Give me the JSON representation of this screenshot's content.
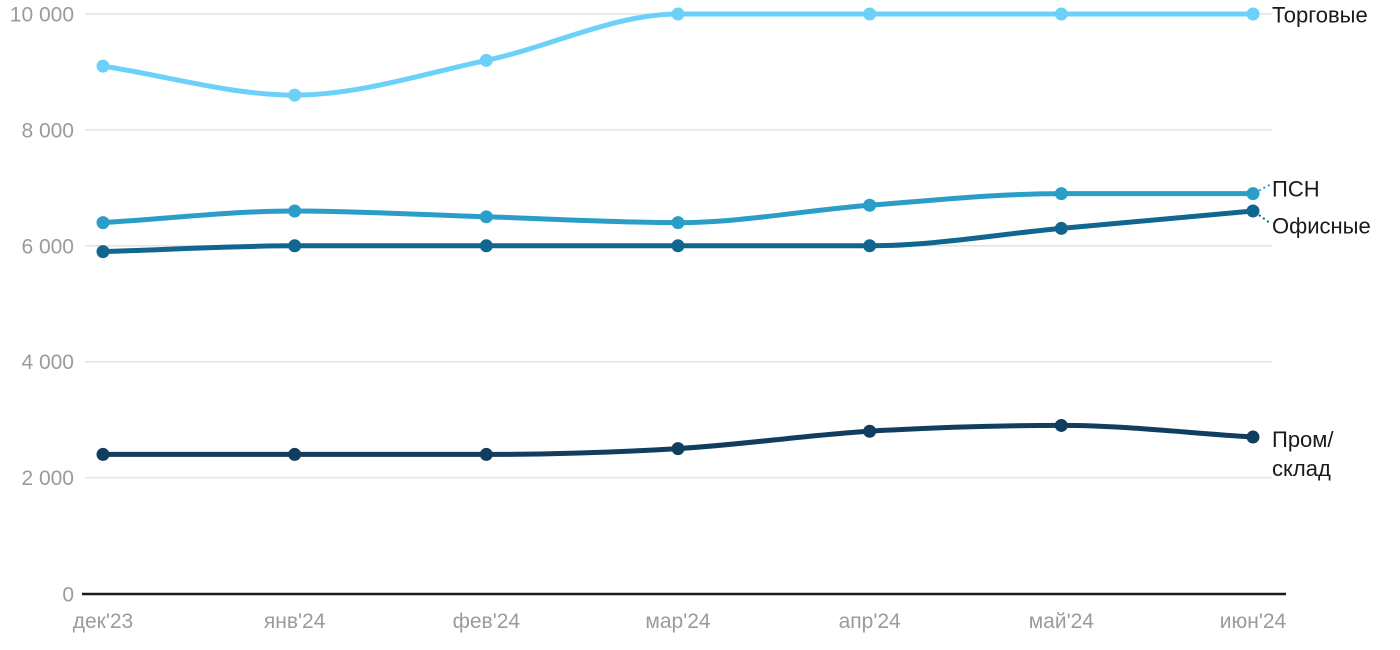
{
  "chart_data": {
    "type": "line",
    "title": "",
    "xlabel": "",
    "ylabel": "",
    "categories": [
      "дек'23",
      "янв'24",
      "фев'24",
      "мар'24",
      "апр'24",
      "май'24",
      "июн'24"
    ],
    "series": [
      {
        "name": "Торговые",
        "color": "#6BD1F8",
        "values": [
          9100,
          8600,
          9200,
          10000,
          10000,
          10000,
          10000
        ]
      },
      {
        "name": "ПСН",
        "color": "#2B9DC9",
        "values": [
          6400,
          6600,
          6500,
          6400,
          6700,
          6900,
          6900
        ]
      },
      {
        "name": "Офисные",
        "color": "#116690",
        "values": [
          5900,
          6000,
          6000,
          6000,
          6000,
          6300,
          6600
        ]
      },
      {
        "name": "Пром/склад",
        "color": "#113D5F",
        "values": [
          2400,
          2400,
          2400,
          2500,
          2800,
          2900,
          2700
        ],
        "label_lines": [
          "Пром/",
          "склад"
        ]
      }
    ],
    "ylim": [
      0,
      10000
    ],
    "yticks": [
      0,
      2000,
      4000,
      6000,
      8000,
      10000
    ],
    "ytick_labels": [
      "0",
      "2 000",
      "4 000",
      "6 000",
      "8 000",
      "10 000"
    ],
    "grid": true,
    "legend_position": "right-inline",
    "colors": {
      "grid_line": "#E3E3E3",
      "axis_line": "#1A1A1A",
      "tick_text": "#9B9B9B",
      "series_label_text": "#1A1A1A"
    }
  }
}
